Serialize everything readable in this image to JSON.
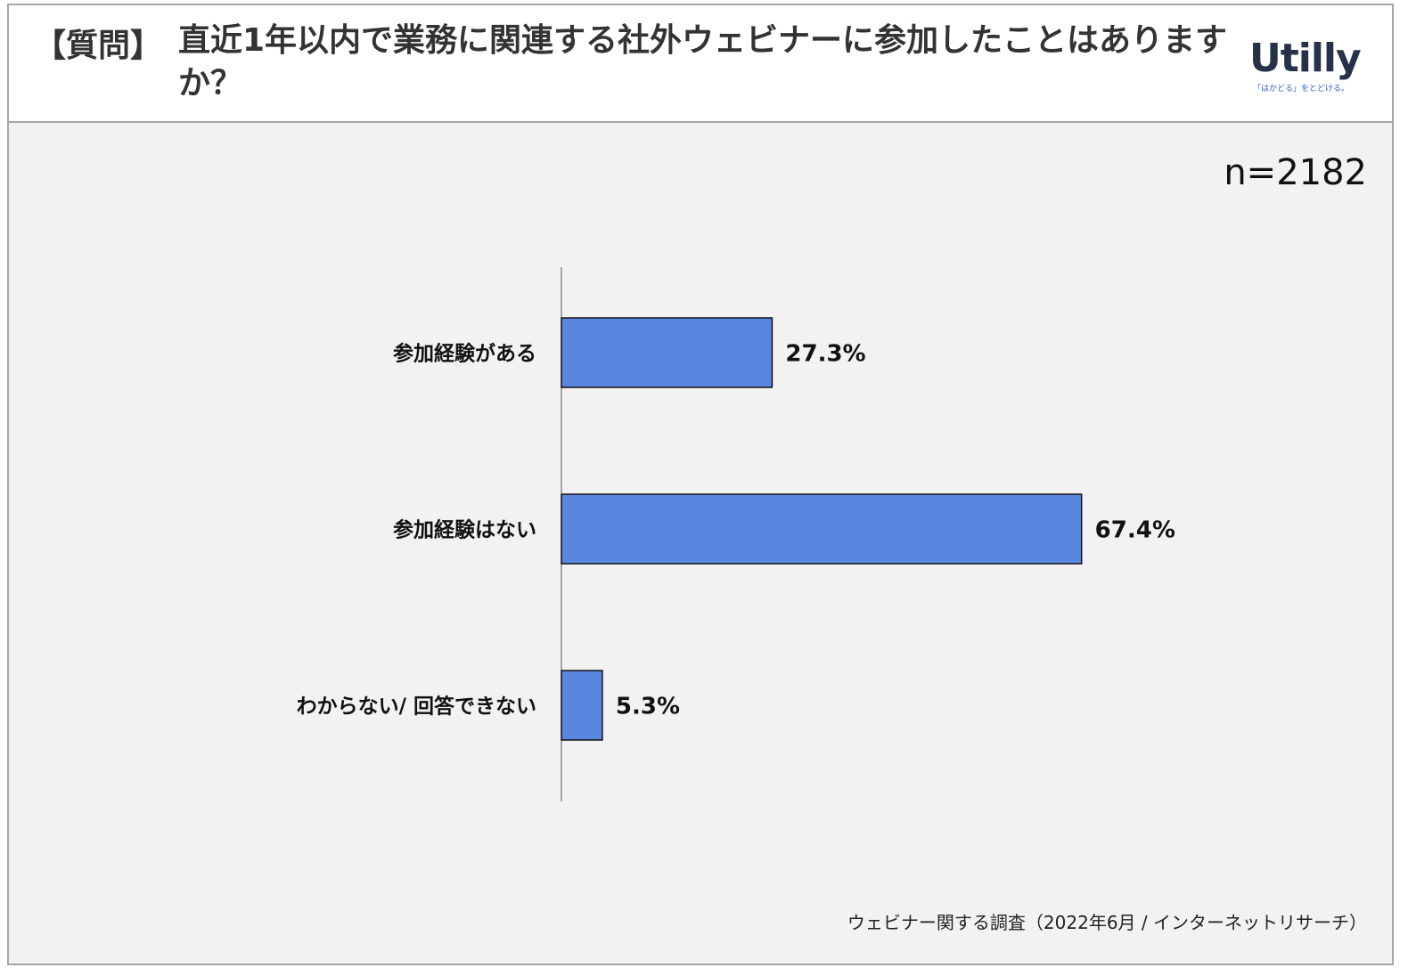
{
  "header": {
    "tag": "【質問】",
    "question": "直近1年以内で業務に関連する社外ウェビナーに参加したことはありますか？"
  },
  "logo": {
    "name": "Utilly",
    "tagline": "「はかどる」をとどける。"
  },
  "sample_size": "n=2182",
  "source": "ウェビナー関する調査（2022年6月 / インターネットリサーチ）",
  "colors": {
    "bar": "#5b86e0",
    "bar_stroke": "#111111",
    "background": "#f2f2f2"
  },
  "chart_data": {
    "type": "bar",
    "orientation": "horizontal",
    "categories": [
      "参加経験がある",
      "参加経験はない",
      "わからない/ 回答できない"
    ],
    "values": [
      27.3,
      67.4,
      5.3
    ],
    "value_labels": [
      "27.3%",
      "67.4%",
      "5.3%"
    ],
    "unit": "%",
    "xlim": [
      0,
      100
    ],
    "grid": false,
    "legend": "none"
  }
}
